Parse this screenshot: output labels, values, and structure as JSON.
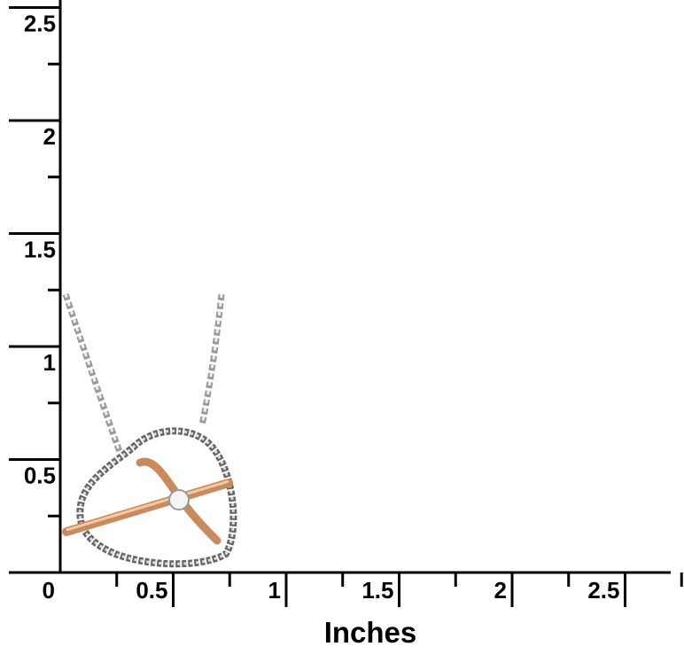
{
  "ruler": {
    "x_labels": [
      "0",
      "0.5",
      "1",
      "1.5",
      "2",
      "2.5"
    ],
    "y_labels": [
      "0.5",
      "1",
      "1.5",
      "2",
      "2.5"
    ],
    "axis_label": "Inches"
  }
}
